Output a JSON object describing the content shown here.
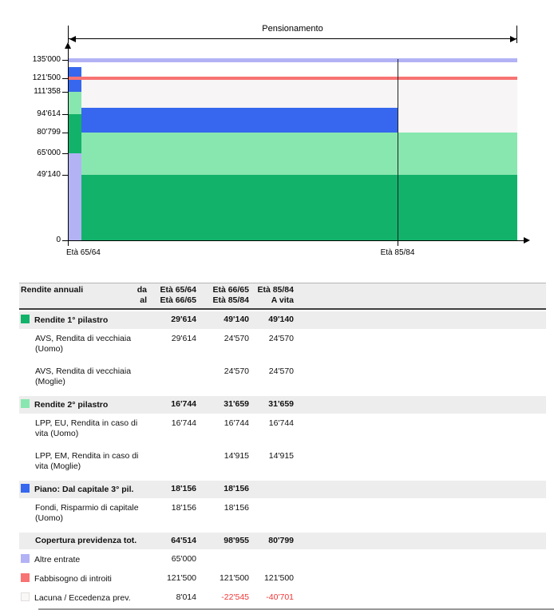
{
  "chart_data": {
    "type": "area",
    "annotation": "Pensionamento",
    "ylim": [
      0,
      135000
    ],
    "grid": false,
    "yticks": [
      {
        "label": "135'000",
        "value": 135000
      },
      {
        "label": "121'500",
        "value": 121500
      },
      {
        "label": "111'358",
        "value": 111358
      },
      {
        "label": "94'614",
        "value": 94614
      },
      {
        "label": "80'799",
        "value": 80799
      },
      {
        "label": "65'000",
        "value": 65000
      },
      {
        "label": "49'140",
        "value": 49140
      },
      {
        "label": "0",
        "value": 0
      }
    ],
    "xticks": [
      {
        "label": "Età 65/64"
      },
      {
        "label": "Età 85/84"
      }
    ],
    "periods": [
      {
        "from": "Età 65/64",
        "to": "Età 66/65"
      },
      {
        "from": "Età 66/65",
        "to": "Età 85/84"
      },
      {
        "from": "Età 85/84",
        "to": "A vita"
      }
    ],
    "series": [
      {
        "name": "Altre entrate",
        "color": "#b2b2f5",
        "values": [
          65000,
          0,
          0
        ]
      },
      {
        "name": "Rendite 1° pilastro",
        "color": "#12b26a",
        "values": [
          29614,
          49140,
          49140
        ]
      },
      {
        "name": "Rendite 2° pilastro",
        "color": "#88e7af",
        "values": [
          16744,
          31659,
          31659
        ]
      },
      {
        "name": "Piano: Dal capitale 3° pil.",
        "color": "#3667ee",
        "values": [
          18156,
          18156,
          0
        ]
      }
    ],
    "reference_lines": [
      {
        "name": "Fabbisogno di introiti",
        "value": 121500,
        "color": "#f87373",
        "thickness": 4
      },
      {
        "name": "Altre entrate (linea)",
        "value": 135000,
        "color": "#b2b2f5",
        "thickness": 5
      }
    ],
    "gap_fill": {
      "name": "Lacuna / Eccedenza prev.",
      "upto": 121500,
      "color": "#f7f5f5"
    }
  },
  "table": {
    "header": {
      "title": "Rendite annuali",
      "range_labels": [
        "da",
        "al"
      ],
      "columns": [
        [
          "Età 65/64",
          "Età 66/65"
        ],
        [
          "Età 66/65",
          "Età 85/84"
        ],
        [
          "Età 85/84",
          "A vita"
        ]
      ]
    },
    "rows": [
      {
        "type": "section",
        "swatch": "#12b26a",
        "label": "Rendite 1° pilastro",
        "values": [
          "29'614",
          "49'140",
          "49'140"
        ]
      },
      {
        "type": "detail",
        "lines": [
          "AVS, Rendita di vecchiaia",
          "(Uomo)"
        ],
        "values": [
          "29'614",
          "24'570",
          "24'570"
        ]
      },
      {
        "type": "detail",
        "lines": [
          "AVS, Rendita di vecchiaia",
          "(Moglie)"
        ],
        "values": [
          "",
          "24'570",
          "24'570"
        ]
      },
      {
        "type": "section",
        "swatch": "#88e7af",
        "label": "Rendite 2° pilastro",
        "values": [
          "16'744",
          "31'659",
          "31'659"
        ]
      },
      {
        "type": "detail",
        "lines": [
          "LPP, EU, Rendita in caso di",
          "vita (Uomo)"
        ],
        "values": [
          "16'744",
          "16'744",
          "16'744"
        ]
      },
      {
        "type": "detail",
        "lines": [
          "LPP, EM, Rendita in caso di",
          "vita (Moglie)"
        ],
        "values": [
          "",
          "14'915",
          "14'915"
        ]
      },
      {
        "type": "section",
        "swatch": "#3667ee",
        "label": "Piano: Dal capitale 3° pil.",
        "values": [
          "18'156",
          "18'156",
          ""
        ]
      },
      {
        "type": "detail",
        "lines": [
          "Fondi, Risparmio di capitale",
          "(Uomo)"
        ],
        "values": [
          "18'156",
          "18'156",
          ""
        ]
      },
      {
        "type": "section",
        "swatch": null,
        "label": "Copertura previdenza tot.",
        "values": [
          "64'514",
          "98'955",
          "80'799"
        ]
      },
      {
        "type": "legend",
        "swatch": "#b2b2f5",
        "label": "Altre entrate",
        "values": [
          "65'000",
          "",
          ""
        ]
      },
      {
        "type": "legend",
        "swatch": "#f87373",
        "label": "Fabbisogno di introiti",
        "values": [
          "121'500",
          "121'500",
          "121'500"
        ]
      },
      {
        "type": "legend",
        "swatch": "#faf7f7",
        "swatch_border": "#e2dede",
        "label": "Lacuna / Eccedenza prev.",
        "values": [
          "8'014",
          "-22'545",
          "-40'701"
        ]
      }
    ]
  }
}
